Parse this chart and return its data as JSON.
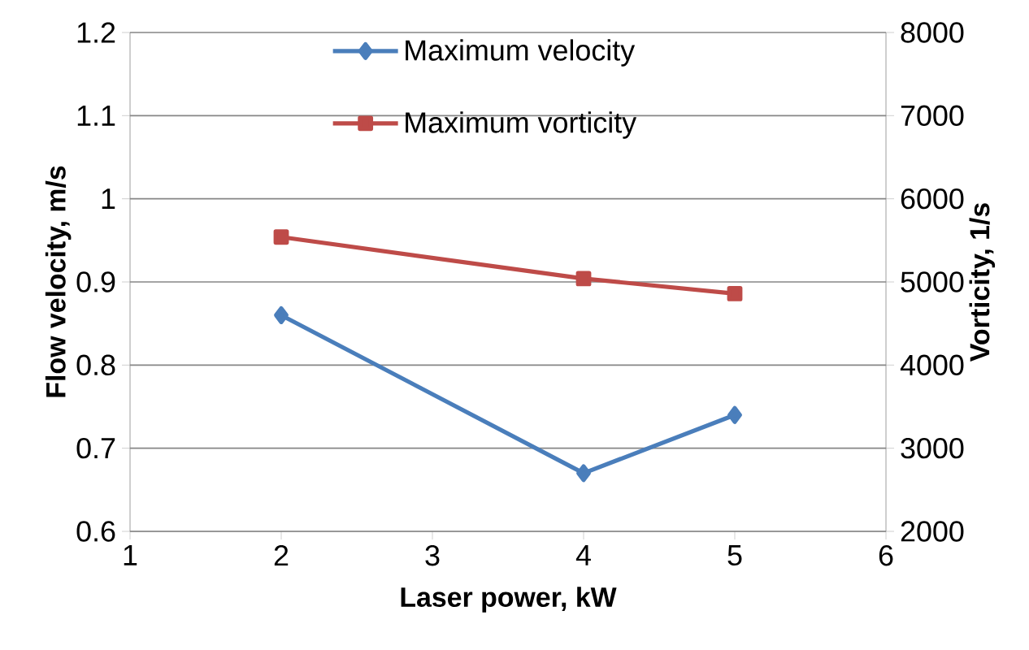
{
  "chart_data": {
    "type": "line",
    "xlabel": "Laser power, kW",
    "ylabel": "Flow velocity, m/s",
    "y2label": "Vorticity, 1/s",
    "series": [
      {
        "name": "Maximum velocity",
        "color": "#4a7ebb",
        "marker": "diamond",
        "x": [
          2,
          4,
          5
        ],
        "values": [
          0.86,
          0.67,
          0.74
        ]
      },
      {
        "name": "Maximum vorticity",
        "color": "#be4b48",
        "marker": "square",
        "axis": "y2",
        "x": [
          2,
          4,
          5
        ],
        "values": [
          5540,
          5040,
          4860
        ]
      }
    ],
    "xlim": [
      1,
      6
    ],
    "xticks": [
      1,
      2,
      3,
      4,
      5,
      6
    ],
    "ylim": [
      0.6,
      1.2
    ],
    "yticks": [
      0.6,
      0.7,
      0.8,
      0.9,
      1,
      1.1,
      1.2
    ],
    "y2lim": [
      2000,
      8000
    ],
    "y2ticks": [
      2000,
      3000,
      4000,
      5000,
      6000,
      7000,
      8000
    ],
    "grid": "y",
    "legend": "top",
    "line_style": "solid"
  }
}
